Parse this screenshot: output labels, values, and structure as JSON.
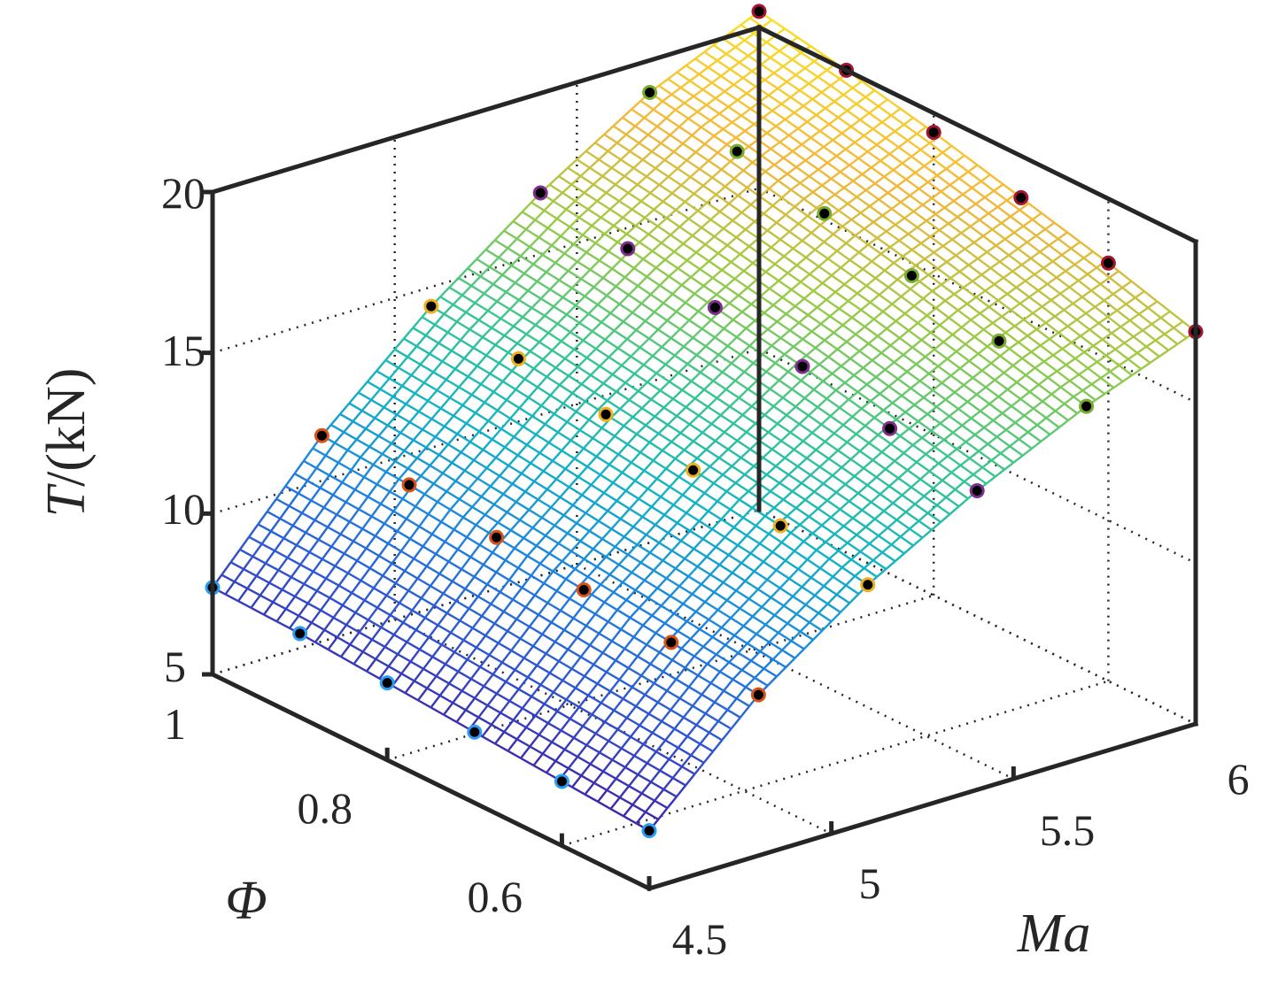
{
  "chart_data": {
    "type": "surface",
    "title": "",
    "xlabel": "Ma",
    "ylabel": "Φ",
    "zlabel_italic": "T",
    "zlabel_unit": "/(kN)",
    "xlim": [
      4.5,
      6
    ],
    "ylim": [
      0.5,
      1
    ],
    "zlim": [
      5,
      20
    ],
    "x_ticks": [
      "4.5",
      "5",
      "5.5",
      "6"
    ],
    "y_ticks": [
      "0.6",
      "0.8",
      "1"
    ],
    "z_ticks": [
      "5",
      "10",
      "15",
      "20"
    ],
    "grid": true,
    "surface": {
      "x": [
        4.5,
        4.8,
        5.1,
        5.4,
        5.7,
        6.0
      ],
      "y": [
        0.5,
        0.6,
        0.7,
        0.8,
        0.9,
        1.0
      ],
      "z": [
        [
          6.8,
          10.0,
          12.4,
          14.3,
          15.9,
          17.2
        ],
        [
          7.0,
          10.3,
          12.9,
          14.9,
          16.6,
          18.0
        ],
        [
          7.2,
          10.6,
          13.3,
          15.5,
          17.3,
          18.7
        ],
        [
          7.4,
          10.9,
          13.7,
          16.0,
          17.9,
          19.4
        ],
        [
          7.6,
          11.2,
          14.1,
          16.5,
          18.5,
          20.0
        ],
        [
          7.7,
          11.4,
          14.4,
          16.9,
          19.0,
          20.5
        ]
      ]
    },
    "markers": {
      "description": "sampled data points on the fitted surface",
      "edge_colors": [
        "#2a9df4",
        "#d95319",
        "#edb120",
        "#7e2f8e",
        "#77ac30",
        "#a2142f"
      ]
    },
    "colormap": [
      "#3e26a8",
      "#2f56d2",
      "#1e83e0",
      "#12b3c5",
      "#3bc68f",
      "#9dca47",
      "#f3b83b",
      "#f9e026"
    ]
  }
}
